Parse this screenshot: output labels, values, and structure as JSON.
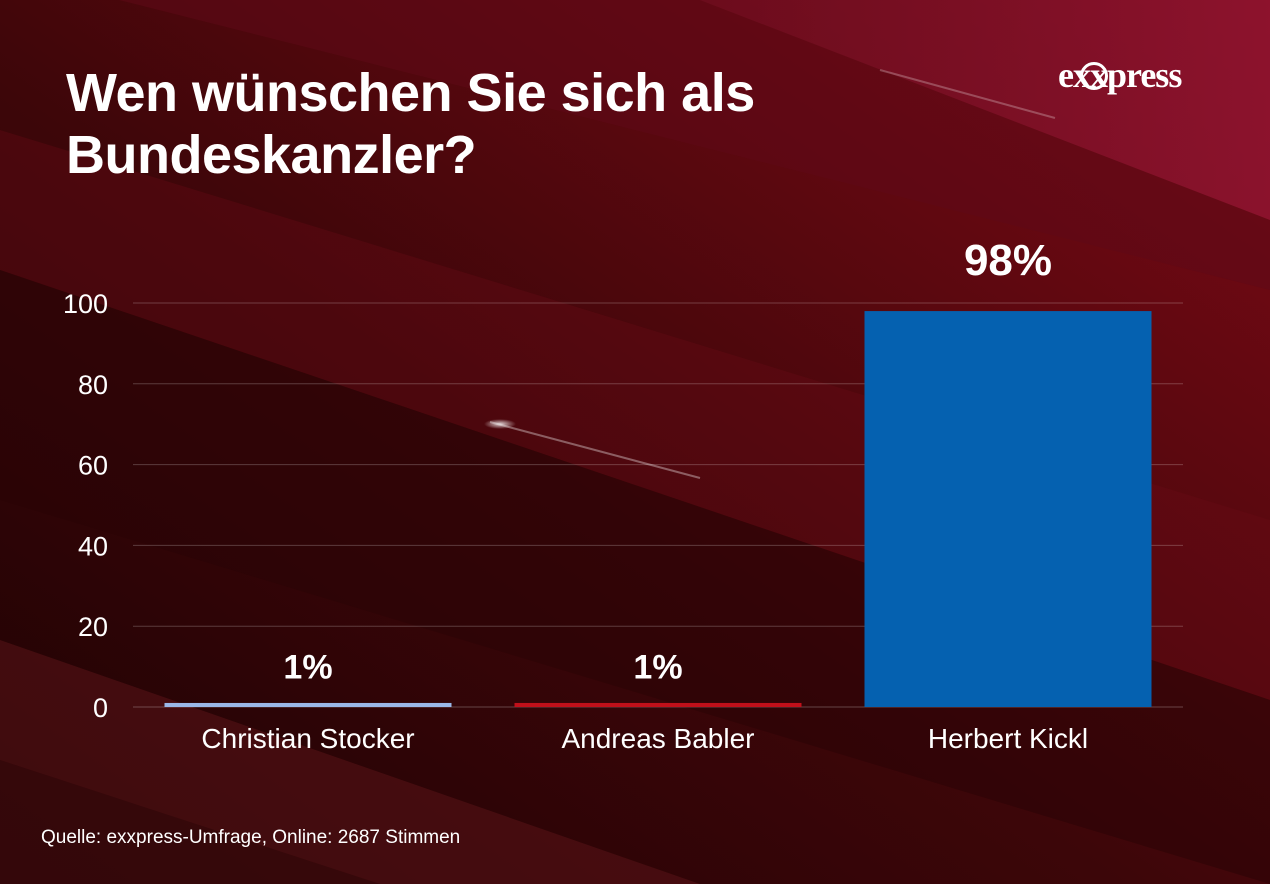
{
  "title": "Wen wünschen Sie sich als Bundeskanzler?",
  "logo": {
    "text": "exxpress"
  },
  "source": "Quelle:  exxpress-Umfrage, Online: 2687 Stimmen",
  "colors": {
    "background_dark": "#3a0507",
    "background_accent": "#8a1030",
    "grid": "#6a2a2e",
    "text": "#ffffff"
  },
  "chart_data": {
    "type": "bar",
    "categories": [
      "Christian Stocker",
      "Andreas Babler",
      "Herbert Kickl"
    ],
    "values": [
      1,
      1,
      98
    ],
    "data_labels": [
      "1%",
      "1%",
      "98%"
    ],
    "bar_colors": [
      "#9ab8e8",
      "#c0101a",
      "#0561b0"
    ],
    "y_ticks": [
      0,
      20,
      40,
      60,
      80,
      100
    ],
    "ylim": [
      0,
      100
    ],
    "grid": true
  }
}
